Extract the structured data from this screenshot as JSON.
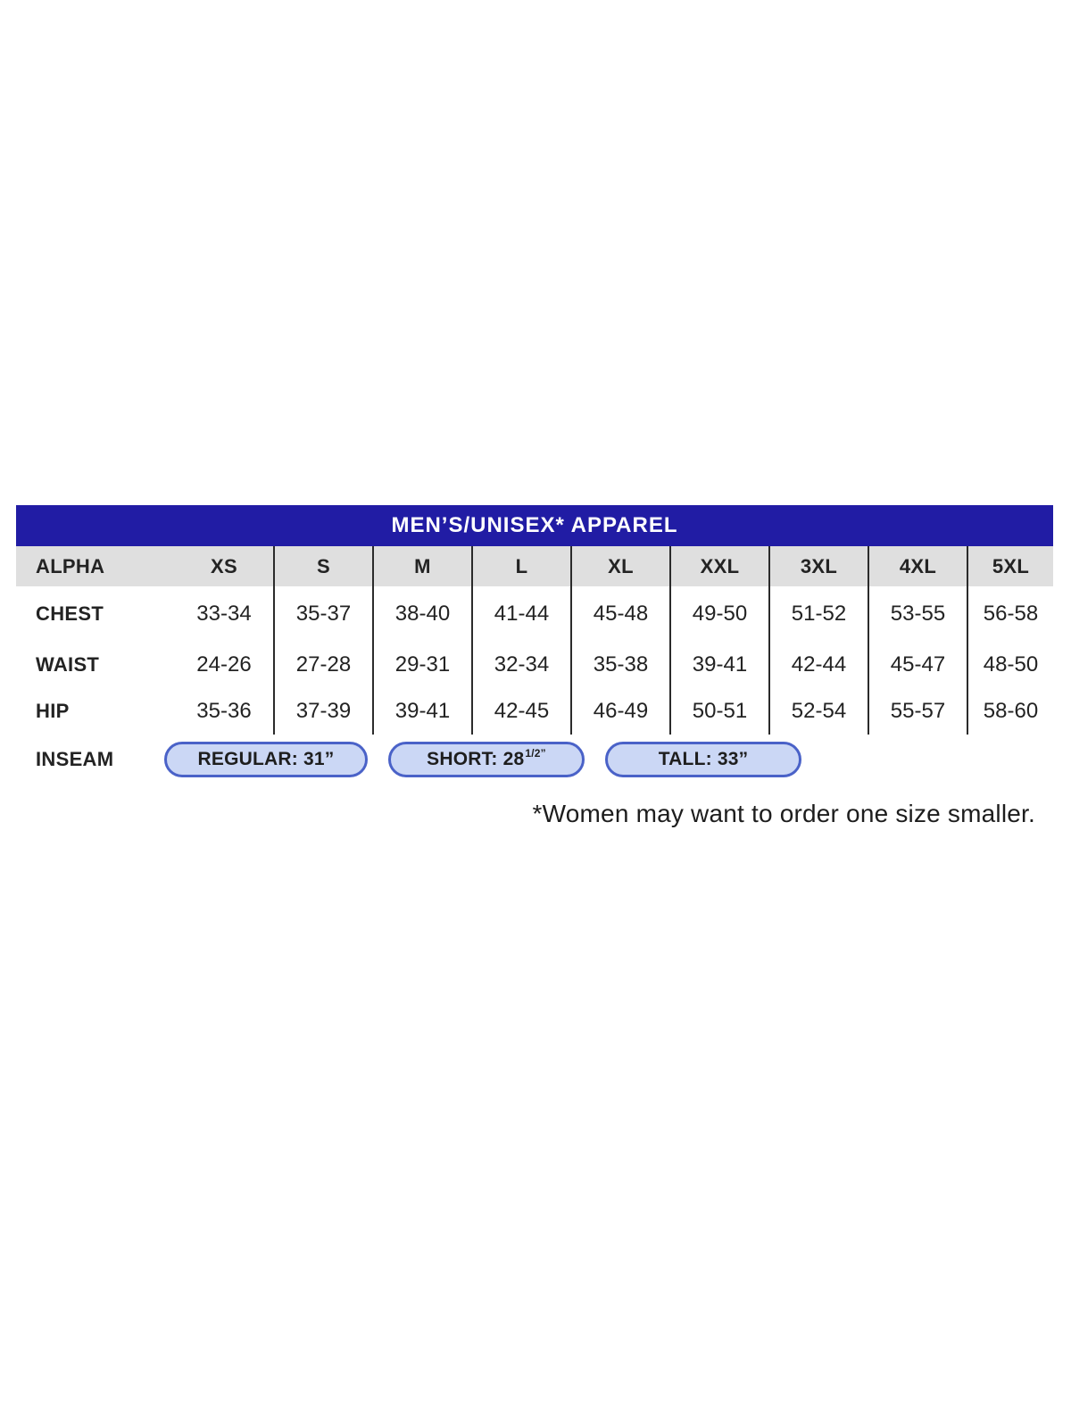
{
  "title": "MEN’S/UNISEX* APPAREL",
  "colors": {
    "header_bg": "#211CA4",
    "subheader_bg": "#DFDFDF",
    "divider": "#2B2B2B",
    "text": "#232323",
    "pill_bg": "#CBD7F5",
    "pill_border": "#4A62C8"
  },
  "size_chart": {
    "header": {
      "label": "ALPHA",
      "sizes": [
        "XS",
        "S",
        "M",
        "L",
        "XL",
        "XXL",
        "3XL",
        "4XL",
        "5XL"
      ]
    },
    "rows": [
      {
        "label": "CHEST",
        "values": [
          "33-34",
          "35-37",
          "38-40",
          "41-44",
          "45-48",
          "49-50",
          "51-52",
          "53-55",
          "56-58"
        ]
      },
      {
        "label": "WAIST",
        "values": [
          "24-26",
          "27-28",
          "29-31",
          "32-34",
          "35-38",
          "39-41",
          "42-44",
          "45-47",
          "48-50"
        ]
      },
      {
        "label": "HIP",
        "values": [
          "35-36",
          "37-39",
          "39-41",
          "42-45",
          "46-49",
          "50-51",
          "52-54",
          "55-57",
          "58-60"
        ]
      }
    ]
  },
  "inseam": {
    "label": "INSEAM",
    "regular": {
      "text": "REGULAR: 31”"
    },
    "short": {
      "text_main": "SHORT: 28",
      "text_sup": "1/2”"
    },
    "tall": {
      "text": "TALL: 33”"
    }
  },
  "footnote": "*Women may want to order one size smaller.",
  "chart_data": {
    "type": "table",
    "title": "MEN’S/UNISEX* APPAREL",
    "columns": [
      "ALPHA",
      "XS",
      "S",
      "M",
      "L",
      "XL",
      "XXL",
      "3XL",
      "4XL",
      "5XL"
    ],
    "rows": [
      [
        "CHEST",
        "33-34",
        "35-37",
        "38-40",
        "41-44",
        "45-48",
        "49-50",
        "51-52",
        "53-55",
        "56-58"
      ],
      [
        "WAIST",
        "24-26",
        "27-28",
        "29-31",
        "32-34",
        "35-38",
        "39-41",
        "42-44",
        "45-47",
        "48-50"
      ],
      [
        "HIP",
        "35-36",
        "37-39",
        "39-41",
        "42-45",
        "46-49",
        "50-51",
        "52-54",
        "55-57",
        "58-60"
      ],
      [
        "INSEAM",
        "REGULAR: 31\"",
        "SHORT: 28 1/2\"",
        "TALL: 33\""
      ]
    ],
    "footnote": "*Women may want to order one size smaller."
  }
}
